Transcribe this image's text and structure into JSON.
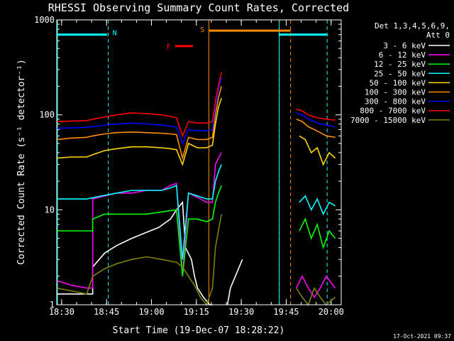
{
  "chart_data": {
    "type": "line",
    "title": "RHESSI Observing Summary Count Rates, Corrected",
    "xlabel": "Start Time (19-Dec-07 18:28:22)",
    "ylabel": "Corrected Count Rate (s⁻¹ detector⁻¹)",
    "y_scale": "log",
    "xlim_minutes": [
      0,
      95
    ],
    "ylim": [
      1,
      1000
    ],
    "x_ticks": [
      {
        "m": 1.63,
        "label": "18:30"
      },
      {
        "m": 16.63,
        "label": "18:45"
      },
      {
        "m": 31.63,
        "label": "19:00"
      },
      {
        "m": 46.63,
        "label": "19:15"
      },
      {
        "m": 61.63,
        "label": "19:30"
      },
      {
        "m": 76.63,
        "label": "19:45"
      },
      {
        "m": 91.63,
        "label": "20:00"
      }
    ],
    "y_ticks": [
      {
        "v": 1,
        "label": "1"
      },
      {
        "v": 10,
        "label": "10"
      },
      {
        "v": 100,
        "label": "100"
      },
      {
        "v": 1000,
        "label": "1000"
      }
    ],
    "legend": {
      "title_lines": [
        "Det 1,3,4,5,6,9,",
        "Att 0"
      ],
      "placement": "right"
    },
    "series": [
      {
        "name": "3 - 6 keV",
        "color": "#ffffff",
        "segments": [
          [
            [
              0,
              1.3
            ],
            [
              12,
              1.3
            ],
            [
              12,
              2.5
            ],
            [
              16,
              3.5
            ],
            [
              20,
              4.2
            ],
            [
              25,
              5.0
            ],
            [
              30,
              5.8
            ],
            [
              34,
              6.5
            ],
            [
              38,
              8
            ],
            [
              40,
              10
            ],
            [
              42,
              12
            ],
            [
              43,
              4
            ],
            [
              45,
              3
            ],
            [
              46,
              2
            ],
            [
              47,
              1.5
            ],
            [
              49,
              1.2
            ],
            [
              51,
              1
            ],
            [
              52,
              1
            ]
          ],
          [
            [
              57,
              1
            ],
            [
              58,
              1.5
            ],
            [
              62,
              3
            ]
          ]
        ]
      },
      {
        "name": "6 - 12 keV",
        "color": "#ff00ff",
        "segments": [
          [
            [
              0,
              1.8
            ],
            [
              5,
              1.6
            ],
            [
              10,
              1.5
            ],
            [
              12,
              1.5
            ],
            [
              12,
              13
            ],
            [
              16,
              14
            ],
            [
              20,
              15
            ],
            [
              25,
              15
            ],
            [
              30,
              16
            ],
            [
              35,
              16
            ],
            [
              38,
              18
            ],
            [
              40,
              19
            ],
            [
              42,
              2
            ],
            [
              44,
              15
            ],
            [
              46,
              14
            ],
            [
              48,
              13
            ],
            [
              50,
              12
            ],
            [
              52,
              12
            ],
            [
              53,
              30
            ],
            [
              54,
              35
            ],
            [
              55,
              40
            ]
          ],
          [
            [
              80,
              1.5
            ],
            [
              82,
              2
            ],
            [
              84,
              1.5
            ],
            [
              86,
              1.2
            ],
            [
              88,
              1.5
            ],
            [
              90,
              2
            ],
            [
              93,
              1.5
            ]
          ]
        ]
      },
      {
        "name": "12 - 25 keV",
        "color": "#00ff00",
        "segments": [
          [
            [
              0,
              6
            ],
            [
              5,
              6
            ],
            [
              10,
              6
            ],
            [
              12,
              6
            ],
            [
              12,
              8
            ],
            [
              16,
              9
            ],
            [
              20,
              9
            ],
            [
              25,
              9
            ],
            [
              30,
              9
            ],
            [
              35,
              9.5
            ],
            [
              40,
              10
            ],
            [
              42,
              2
            ],
            [
              44,
              8
            ],
            [
              47,
              8
            ],
            [
              50,
              7.5
            ],
            [
              52,
              8
            ],
            [
              53,
              12
            ],
            [
              54,
              15
            ],
            [
              55,
              18
            ]
          ],
          [
            [
              81,
              6
            ],
            [
              83,
              8
            ],
            [
              85,
              5
            ],
            [
              87,
              7
            ],
            [
              89,
              4
            ],
            [
              91,
              6
            ],
            [
              93,
              5
            ]
          ]
        ]
      },
      {
        "name": "25 - 50 keV",
        "color": "#00ffff",
        "segments": [
          [
            [
              0,
              13
            ],
            [
              5,
              13
            ],
            [
              10,
              13
            ],
            [
              15,
              14
            ],
            [
              20,
              15
            ],
            [
              25,
              16
            ],
            [
              30,
              16
            ],
            [
              35,
              16
            ],
            [
              38,
              17
            ],
            [
              40,
              18
            ],
            [
              42,
              3
            ],
            [
              44,
              15
            ],
            [
              47,
              14
            ],
            [
              50,
              13
            ],
            [
              52,
              13
            ],
            [
              53,
              20
            ],
            [
              54,
              25
            ],
            [
              55,
              30
            ]
          ],
          [
            [
              81,
              12
            ],
            [
              83,
              14
            ],
            [
              85,
              10
            ],
            [
              87,
              13
            ],
            [
              89,
              9
            ],
            [
              91,
              12
            ],
            [
              93,
              11
            ]
          ]
        ]
      },
      {
        "name": "50 - 100 keV",
        "color": "#ffd700",
        "segments": [
          [
            [
              0,
              35
            ],
            [
              5,
              36
            ],
            [
              10,
              36
            ],
            [
              12,
              38
            ],
            [
              16,
              42
            ],
            [
              20,
              44
            ],
            [
              25,
              46
            ],
            [
              30,
              46
            ],
            [
              35,
              45
            ],
            [
              38,
              44
            ],
            [
              40,
              43
            ],
            [
              42,
              30
            ],
            [
              44,
              50
            ],
            [
              47,
              45
            ],
            [
              50,
              45
            ],
            [
              52,
              48
            ],
            [
              53,
              80
            ],
            [
              54,
              120
            ],
            [
              55,
              150
            ]
          ],
          [
            [
              81,
              60
            ],
            [
              83,
              55
            ],
            [
              85,
              40
            ],
            [
              87,
              45
            ],
            [
              89,
              30
            ],
            [
              91,
              40
            ],
            [
              93,
              35
            ]
          ]
        ]
      },
      {
        "name": "100 - 300 keV",
        "color": "#ff8c00",
        "segments": [
          [
            [
              0,
              55
            ],
            [
              5,
              57
            ],
            [
              10,
              58
            ],
            [
              12,
              60
            ],
            [
              16,
              63
            ],
            [
              20,
              65
            ],
            [
              25,
              66
            ],
            [
              30,
              65
            ],
            [
              35,
              64
            ],
            [
              38,
              63
            ],
            [
              40,
              62
            ],
            [
              42,
              35
            ],
            [
              44,
              58
            ],
            [
              47,
              55
            ],
            [
              50,
              55
            ],
            [
              52,
              58
            ],
            [
              53,
              100
            ],
            [
              54,
              150
            ],
            [
              55,
              200
            ]
          ],
          [
            [
              80,
              90
            ],
            [
              82,
              85
            ],
            [
              84,
              75
            ],
            [
              86,
              70
            ],
            [
              88,
              65
            ],
            [
              90,
              60
            ],
            [
              93,
              58
            ]
          ]
        ]
      },
      {
        "name": "300 - 800 keV",
        "color": "#0000ff",
        "segments": [
          [
            [
              0,
              72
            ],
            [
              5,
              73
            ],
            [
              10,
              74
            ],
            [
              12,
              75
            ],
            [
              16,
              78
            ],
            [
              20,
              80
            ],
            [
              25,
              82
            ],
            [
              30,
              80
            ],
            [
              35,
              78
            ],
            [
              38,
              76
            ],
            [
              40,
              74
            ],
            [
              42,
              50
            ],
            [
              44,
              70
            ],
            [
              47,
              68
            ],
            [
              50,
              68
            ],
            [
              52,
              70
            ],
            [
              53,
              120
            ],
            [
              54,
              180
            ],
            [
              55,
              250
            ]
          ],
          [
            [
              80,
              105
            ],
            [
              82,
              100
            ],
            [
              84,
              90
            ],
            [
              86,
              85
            ],
            [
              88,
              80
            ],
            [
              90,
              78
            ],
            [
              93,
              75
            ]
          ]
        ]
      },
      {
        "name": "800 - 7000 keV",
        "color": "#ff0000",
        "segments": [
          [
            [
              0,
              85
            ],
            [
              5,
              86
            ],
            [
              10,
              87
            ],
            [
              12,
              90
            ],
            [
              16,
              95
            ],
            [
              20,
              100
            ],
            [
              25,
              105
            ],
            [
              30,
              103
            ],
            [
              35,
              100
            ],
            [
              38,
              96
            ],
            [
              40,
              93
            ],
            [
              42,
              60
            ],
            [
              44,
              85
            ],
            [
              47,
              82
            ],
            [
              50,
              82
            ],
            [
              52,
              85
            ],
            [
              53,
              140
            ],
            [
              54,
              200
            ],
            [
              55,
              280
            ]
          ],
          [
            [
              80,
              115
            ],
            [
              82,
              110
            ],
            [
              84,
              100
            ],
            [
              86,
              95
            ],
            [
              88,
              92
            ],
            [
              90,
              90
            ],
            [
              93,
              88
            ]
          ]
        ]
      },
      {
        "name": "7000 - 15000 keV",
        "color": "#808000",
        "segments": [
          [
            [
              0,
              1.5
            ],
            [
              5,
              1.4
            ],
            [
              10,
              1.3
            ],
            [
              12,
              2.0
            ],
            [
              16,
              2.4
            ],
            [
              20,
              2.7
            ],
            [
              25,
              3.0
            ],
            [
              30,
              3.2
            ],
            [
              35,
              3.0
            ],
            [
              40,
              2.8
            ],
            [
              42,
              2.5
            ],
            [
              44,
              2.0
            ],
            [
              46,
              1.6
            ],
            [
              48,
              1.2
            ],
            [
              50,
              1.0
            ],
            [
              52,
              1.5
            ],
            [
              53,
              4
            ],
            [
              54,
              6
            ],
            [
              55,
              9
            ]
          ],
          [
            [
              80,
              1.5
            ],
            [
              82,
              1.2
            ],
            [
              84,
              1.0
            ],
            [
              86,
              1.5
            ],
            [
              88,
              1.2
            ],
            [
              90,
              1.0
            ],
            [
              93,
              1.2
            ]
          ]
        ]
      }
    ],
    "annotations": {
      "night": {
        "label": "N",
        "color": "#00ffff",
        "lines": [
          17.2,
          74.3,
          90.3
        ],
        "bars": [
          [
            0,
            16.8
          ],
          [
            74.3,
            90.3
          ]
        ],
        "bar_y": 700
      },
      "flare": {
        "label": "F",
        "color": "#ff0000",
        "bar": [
          39.5,
          45.5
        ],
        "bar_y": 530
      },
      "saa": {
        "label": "S",
        "color": "#ff8c00",
        "lines": [
          50.8,
          78.1
        ],
        "bar": [
          50.8,
          78.1
        ],
        "bar_y": 770
      }
    },
    "grid": false
  },
  "timestamp": "17-Oct-2021 09:37"
}
